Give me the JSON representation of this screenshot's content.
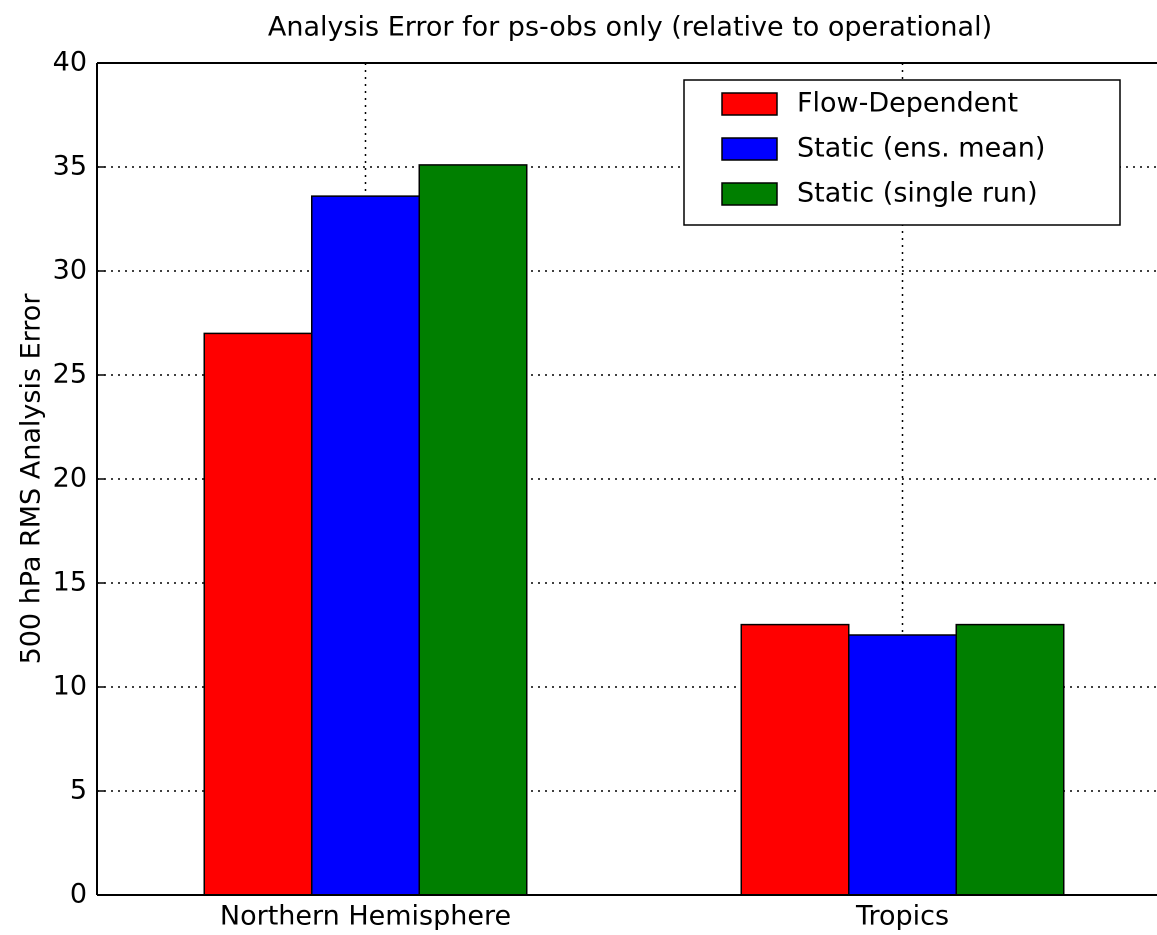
{
  "chart_data": {
    "type": "bar",
    "title": "Analysis Error for ps-obs only (relative to operational)",
    "y_label": "500 hPa RMS Analysis Error",
    "categories": [
      "Northern Hemisphere",
      "Tropics"
    ],
    "series": [
      {
        "name": "Flow-Dependent",
        "color": "#ff0000",
        "values": [
          27,
          13
        ]
      },
      {
        "name": "Static (ens. mean)",
        "color": "#0000ff",
        "values": [
          33.6,
          12.5
        ]
      },
      {
        "name": "Static (single run)",
        "color": "#007f00",
        "values": [
          35.1,
          13
        ]
      }
    ],
    "ylim": [
      0,
      40
    ],
    "yticks": [
      0,
      5,
      10,
      15,
      20,
      25,
      30,
      35,
      40
    ],
    "grid": true,
    "legend": "upper right"
  }
}
